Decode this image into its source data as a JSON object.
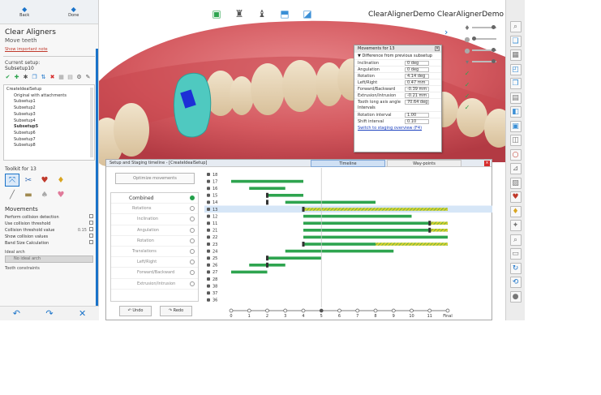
{
  "nav": {
    "back_label": "Back",
    "done_label": "Done"
  },
  "left_panel": {
    "title": "Clear Aligners",
    "subtitle": "Move teeth",
    "important_note_link": "Show important note",
    "current_setup_label": "Current setup:",
    "current_setup_value": "Subsetup10",
    "tree_items": [
      {
        "label": "CreateIdealSetup",
        "level": 0,
        "bold": false
      },
      {
        "label": "Original with attachments",
        "level": 1,
        "bold": false
      },
      {
        "label": "Subsetup1",
        "level": 1,
        "bold": false
      },
      {
        "label": "Subsetup2",
        "level": 1,
        "bold": false
      },
      {
        "label": "Subsetup3",
        "level": 1,
        "bold": false
      },
      {
        "label": "Subsetup4",
        "level": 1,
        "bold": false
      },
      {
        "label": "Subsetup5",
        "level": 1,
        "bold": true
      },
      {
        "label": "Subsetup6",
        "level": 1,
        "bold": false
      },
      {
        "label": "Subsetup7",
        "level": 1,
        "bold": false
      },
      {
        "label": "Subsetup8",
        "level": 1,
        "bold": false
      }
    ],
    "toolkit_title": "Toolkit for 13",
    "movements_title": "Movements",
    "options": [
      {
        "label": "Perform collision detection",
        "value": ""
      },
      {
        "label": "Use collision threshold",
        "value": ""
      },
      {
        "label": "Collision threshold value",
        "value": "0.15"
      },
      {
        "label": "Show collision values",
        "value": ""
      },
      {
        "label": "Band Size Calculation",
        "value": ""
      }
    ],
    "ideal_arch_label": "Ideal arch",
    "ideal_arch_value": "No ideal arch",
    "tooth_constraints_label": "Tooth constraints"
  },
  "viewport": {
    "title": "ClearAlignerDemo ClearAlignerDemo"
  },
  "movements_popup": {
    "title": "Movements for 13",
    "section": "Difference from previous subsetup",
    "rows": [
      {
        "label": "Inclination",
        "value": "0 deg"
      },
      {
        "label": "Angulation",
        "value": "0 deg"
      },
      {
        "label": "Rotation",
        "value": "4.14 deg"
      },
      {
        "label": "Left/Right",
        "value": "0.47 mm"
      },
      {
        "label": "Forward/Backward",
        "value": "-0.39 mm"
      },
      {
        "label": "Extrusion/Intrusion",
        "value": "-0.21 mm"
      },
      {
        "label": "Tooth long axis angle",
        "value": "70.64 deg"
      }
    ],
    "intervals_label": "Intervals",
    "interval_rows": [
      {
        "label": "Rotation interval",
        "value": "1.00"
      },
      {
        "label": "Shift interval",
        "value": "0.10"
      }
    ],
    "link": "Switch to staging overview (F4)"
  },
  "timeline": {
    "title": "Setup and Staging timeline - [CreateIdealSetup]",
    "tab_timeline": "Timeline",
    "tab_waypoints": "Way-points",
    "optimize_label": "Optimize movements",
    "tree": [
      {
        "label": "Combined",
        "level": 0
      },
      {
        "label": "Rotations",
        "level": 1
      },
      {
        "label": "Inclination",
        "level": 2
      },
      {
        "label": "Angulation",
        "level": 2
      },
      {
        "label": "Rotation",
        "level": 2
      },
      {
        "label": "Translations",
        "level": 1
      },
      {
        "label": "Left/Right",
        "level": 2
      },
      {
        "label": "Forward/Backward",
        "level": 2
      },
      {
        "label": "Extrusion/Intrusion",
        "level": 2
      }
    ],
    "undo_label": "Undo",
    "redo_label": "Redo"
  },
  "chart_data": {
    "type": "gantt",
    "x_ticks": [
      "0",
      "1",
      "2",
      "3",
      "4",
      "5",
      "6",
      "7",
      "8",
      "9",
      "10",
      "11",
      "Final"
    ],
    "selected_tooth": "13",
    "current_stage": 5,
    "teeth": [
      {
        "tooth": "18",
        "bars": [],
        "hatched": [],
        "markers": []
      },
      {
        "tooth": "17",
        "bars": [
          [
            0,
            4
          ]
        ],
        "hatched": [],
        "markers": []
      },
      {
        "tooth": "16",
        "bars": [
          [
            1,
            3
          ]
        ],
        "hatched": [],
        "markers": []
      },
      {
        "tooth": "15",
        "bars": [
          [
            2,
            4
          ]
        ],
        "hatched": [],
        "markers": [
          2
        ]
      },
      {
        "tooth": "14",
        "bars": [
          [
            3,
            8
          ]
        ],
        "hatched": [],
        "markers": [
          2
        ]
      },
      {
        "tooth": "13",
        "bars": [],
        "hatched": [
          [
            4,
            12
          ]
        ],
        "markers": [
          4
        ]
      },
      {
        "tooth": "12",
        "bars": [
          [
            4,
            10
          ]
        ],
        "hatched": [],
        "markers": []
      },
      {
        "tooth": "11",
        "bars": [
          [
            4,
            11
          ]
        ],
        "hatched": [
          [
            11,
            12
          ]
        ],
        "markers": [
          11
        ]
      },
      {
        "tooth": "21",
        "bars": [
          [
            4,
            11
          ]
        ],
        "hatched": [
          [
            11,
            12
          ]
        ],
        "markers": [
          11
        ]
      },
      {
        "tooth": "22",
        "bars": [
          [
            4,
            12
          ]
        ],
        "hatched": [],
        "markers": []
      },
      {
        "tooth": "23",
        "bars": [
          [
            4,
            8
          ]
        ],
        "hatched": [
          [
            8,
            12
          ]
        ],
        "markers": [
          4
        ]
      },
      {
        "tooth": "24",
        "bars": [
          [
            3,
            9
          ]
        ],
        "hatched": [],
        "markers": []
      },
      {
        "tooth": "25",
        "bars": [
          [
            2,
            5
          ]
        ],
        "hatched": [],
        "markers": [
          2
        ]
      },
      {
        "tooth": "26",
        "bars": [
          [
            1,
            3
          ]
        ],
        "hatched": [],
        "markers": [
          2
        ]
      },
      {
        "tooth": "27",
        "bars": [
          [
            0,
            2
          ]
        ],
        "hatched": [],
        "markers": []
      },
      {
        "tooth": "28",
        "bars": [],
        "hatched": [],
        "markers": []
      },
      {
        "tooth": "38",
        "bars": [],
        "hatched": [],
        "markers": []
      },
      {
        "tooth": "37",
        "bars": [],
        "hatched": [],
        "markers": []
      },
      {
        "tooth": "36",
        "bars": [],
        "hatched": [],
        "markers": []
      }
    ],
    "colors": {
      "bar": "#2ea44f",
      "hatch": "#d8cf2a",
      "marker": "#333333",
      "highlight": "#d6e6f7"
    }
  }
}
